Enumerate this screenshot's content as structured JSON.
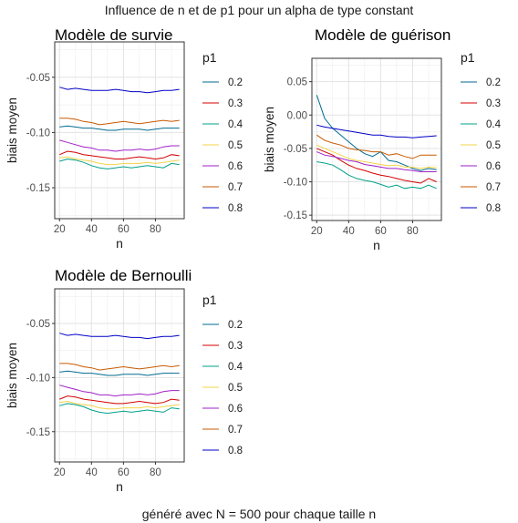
{
  "title": "Influence de n et de p1 pour un alpha de type constant",
  "caption": "généré avec N = 500 pour chaque taille n",
  "chart_data": [
    {
      "type": "line",
      "title": "Modèle de survie",
      "xlabel": "n",
      "ylabel": "biais moyen",
      "xlim": [
        17,
        98
      ],
      "ylim": [
        -0.178,
        -0.018
      ],
      "xticks": [
        20,
        40,
        60,
        80
      ],
      "xtick_labels": [
        "20",
        "40",
        "60",
        "80"
      ],
      "yticks": [
        -0.15,
        -0.1,
        -0.05
      ],
      "ytick_labels": [
        "-0.15",
        "-0.10",
        "-0.05"
      ],
      "grid": true,
      "legend_title": "p1",
      "legend_position": "right",
      "x": [
        20,
        25,
        30,
        35,
        40,
        45,
        50,
        55,
        60,
        65,
        70,
        75,
        80,
        85,
        90,
        95
      ],
      "series": [
        {
          "name": "0.2",
          "color": "#006b8f",
          "values": [
            -0.095,
            -0.094,
            -0.095,
            -0.096,
            -0.096,
            -0.097,
            -0.098,
            -0.098,
            -0.097,
            -0.097,
            -0.097,
            -0.098,
            -0.097,
            -0.096,
            -0.096,
            -0.096
          ]
        },
        {
          "name": "0.3",
          "color": "#d40000",
          "values": [
            -0.12,
            -0.117,
            -0.118,
            -0.12,
            -0.121,
            -0.122,
            -0.123,
            -0.124,
            -0.124,
            -0.123,
            -0.122,
            -0.123,
            -0.124,
            -0.123,
            -0.12,
            -0.121
          ]
        },
        {
          "name": "0.4",
          "color": "#00a08a",
          "values": [
            -0.126,
            -0.124,
            -0.125,
            -0.127,
            -0.13,
            -0.132,
            -0.133,
            -0.132,
            -0.131,
            -0.132,
            -0.131,
            -0.13,
            -0.131,
            -0.132,
            -0.128,
            -0.129
          ]
        },
        {
          "name": "0.5",
          "color": "#f2d44a",
          "values": [
            -0.123,
            -0.122,
            -0.124,
            -0.125,
            -0.126,
            -0.128,
            -0.129,
            -0.129,
            -0.128,
            -0.128,
            -0.128,
            -0.127,
            -0.128,
            -0.127,
            -0.126,
            -0.125
          ]
        },
        {
          "name": "0.6",
          "color": "#a020c8",
          "values": [
            -0.107,
            -0.109,
            -0.111,
            -0.113,
            -0.114,
            -0.116,
            -0.116,
            -0.117,
            -0.116,
            -0.116,
            -0.115,
            -0.116,
            -0.115,
            -0.113,
            -0.112,
            -0.112
          ]
        },
        {
          "name": "0.7",
          "color": "#c85a00",
          "values": [
            -0.087,
            -0.087,
            -0.088,
            -0.09,
            -0.091,
            -0.093,
            -0.092,
            -0.091,
            -0.09,
            -0.091,
            -0.092,
            -0.091,
            -0.09,
            -0.089,
            -0.09,
            -0.089
          ]
        },
        {
          "name": "0.8",
          "color": "#0000c8",
          "values": [
            -0.059,
            -0.061,
            -0.06,
            -0.061,
            -0.062,
            -0.062,
            -0.062,
            -0.061,
            -0.062,
            -0.063,
            -0.063,
            -0.064,
            -0.063,
            -0.062,
            -0.062,
            -0.061
          ]
        }
      ]
    },
    {
      "type": "line",
      "title": "Modèle de guérison",
      "xlabel": "n",
      "ylabel": "biais moyen",
      "xlim": [
        17,
        98
      ],
      "ylim": [
        -0.158,
        0.085
      ],
      "xticks": [
        20,
        40,
        60,
        80
      ],
      "xtick_labels": [
        "20",
        "40",
        "60",
        "80"
      ],
      "yticks": [
        -0.15,
        -0.1,
        -0.05,
        0.0,
        0.05
      ],
      "ytick_labels": [
        "-0.15",
        "-0.10",
        "-0.05",
        "0.00",
        "0.05"
      ],
      "grid": true,
      "legend_title": "p1",
      "legend_position": "right",
      "x": [
        20,
        25,
        30,
        35,
        40,
        45,
        50,
        55,
        60,
        65,
        70,
        75,
        80,
        85,
        90,
        95
      ],
      "series": [
        {
          "name": "0.2",
          "color": "#006b8f",
          "values": [
            0.03,
            -0.005,
            -0.02,
            -0.03,
            -0.04,
            -0.05,
            -0.058,
            -0.062,
            -0.055,
            -0.068,
            -0.07,
            -0.075,
            -0.08,
            -0.083,
            -0.08,
            -0.082
          ]
        },
        {
          "name": "0.3",
          "color": "#d40000",
          "values": [
            -0.05,
            -0.055,
            -0.06,
            -0.068,
            -0.075,
            -0.08,
            -0.083,
            -0.087,
            -0.09,
            -0.092,
            -0.095,
            -0.098,
            -0.1,
            -0.102,
            -0.095,
            -0.1
          ]
        },
        {
          "name": "0.4",
          "color": "#00a08a",
          "values": [
            -0.07,
            -0.072,
            -0.075,
            -0.082,
            -0.09,
            -0.095,
            -0.098,
            -0.1,
            -0.104,
            -0.108,
            -0.105,
            -0.11,
            -0.108,
            -0.11,
            -0.105,
            -0.11
          ]
        },
        {
          "name": "0.5",
          "color": "#f2d44a",
          "values": [
            -0.045,
            -0.05,
            -0.055,
            -0.06,
            -0.065,
            -0.068,
            -0.07,
            -0.072,
            -0.074,
            -0.076,
            -0.075,
            -0.078,
            -0.078,
            -0.08,
            -0.078,
            -0.079
          ]
        },
        {
          "name": "0.6",
          "color": "#a020c8",
          "values": [
            -0.055,
            -0.06,
            -0.062,
            -0.065,
            -0.068,
            -0.07,
            -0.074,
            -0.076,
            -0.078,
            -0.08,
            -0.08,
            -0.082,
            -0.083,
            -0.085,
            -0.085,
            -0.085
          ]
        },
        {
          "name": "0.7",
          "color": "#c85a00",
          "values": [
            -0.03,
            -0.038,
            -0.042,
            -0.045,
            -0.05,
            -0.052,
            -0.053,
            -0.055,
            -0.055,
            -0.06,
            -0.058,
            -0.062,
            -0.065,
            -0.06,
            -0.06,
            -0.06
          ]
        },
        {
          "name": "0.8",
          "color": "#0000c8",
          "values": [
            -0.015,
            -0.018,
            -0.02,
            -0.022,
            -0.024,
            -0.026,
            -0.028,
            -0.03,
            -0.03,
            -0.032,
            -0.033,
            -0.033,
            -0.034,
            -0.033,
            -0.032,
            -0.031
          ]
        }
      ]
    },
    {
      "type": "line",
      "title": "Modèle de Bernoulli",
      "xlabel": "n",
      "ylabel": "biais moyen",
      "xlim": [
        17,
        98
      ],
      "ylim": [
        -0.178,
        -0.018
      ],
      "xticks": [
        20,
        40,
        60,
        80
      ],
      "xtick_labels": [
        "20",
        "40",
        "60",
        "80"
      ],
      "yticks": [
        -0.15,
        -0.1,
        -0.05
      ],
      "ytick_labels": [
        "-0.15",
        "-0.10",
        "-0.05"
      ],
      "grid": true,
      "legend_title": "p1",
      "legend_position": "right",
      "x": [
        20,
        25,
        30,
        35,
        40,
        45,
        50,
        55,
        60,
        65,
        70,
        75,
        80,
        85,
        90,
        95
      ],
      "series": [
        {
          "name": "0.2",
          "color": "#006b8f",
          "values": [
            -0.095,
            -0.094,
            -0.095,
            -0.096,
            -0.096,
            -0.097,
            -0.098,
            -0.098,
            -0.097,
            -0.097,
            -0.097,
            -0.098,
            -0.097,
            -0.096,
            -0.096,
            -0.096
          ]
        },
        {
          "name": "0.3",
          "color": "#d40000",
          "values": [
            -0.12,
            -0.117,
            -0.118,
            -0.12,
            -0.121,
            -0.122,
            -0.123,
            -0.124,
            -0.124,
            -0.123,
            -0.122,
            -0.123,
            -0.124,
            -0.123,
            -0.12,
            -0.121
          ]
        },
        {
          "name": "0.4",
          "color": "#00a08a",
          "values": [
            -0.126,
            -0.124,
            -0.125,
            -0.127,
            -0.13,
            -0.132,
            -0.133,
            -0.132,
            -0.131,
            -0.132,
            -0.131,
            -0.13,
            -0.131,
            -0.132,
            -0.128,
            -0.129
          ]
        },
        {
          "name": "0.5",
          "color": "#f2d44a",
          "values": [
            -0.123,
            -0.122,
            -0.124,
            -0.125,
            -0.126,
            -0.128,
            -0.129,
            -0.129,
            -0.128,
            -0.128,
            -0.128,
            -0.127,
            -0.128,
            -0.127,
            -0.126,
            -0.125
          ]
        },
        {
          "name": "0.6",
          "color": "#a020c8",
          "values": [
            -0.107,
            -0.109,
            -0.111,
            -0.113,
            -0.114,
            -0.116,
            -0.116,
            -0.117,
            -0.116,
            -0.116,
            -0.115,
            -0.116,
            -0.115,
            -0.113,
            -0.112,
            -0.112
          ]
        },
        {
          "name": "0.7",
          "color": "#c85a00",
          "values": [
            -0.087,
            -0.087,
            -0.088,
            -0.09,
            -0.091,
            -0.093,
            -0.092,
            -0.091,
            -0.09,
            -0.091,
            -0.092,
            -0.091,
            -0.09,
            -0.089,
            -0.09,
            -0.089
          ]
        },
        {
          "name": "0.8",
          "color": "#0000c8",
          "values": [
            -0.059,
            -0.061,
            -0.06,
            -0.061,
            -0.062,
            -0.062,
            -0.062,
            -0.061,
            -0.062,
            -0.063,
            -0.063,
            -0.064,
            -0.063,
            -0.062,
            -0.062,
            -0.061
          ]
        }
      ]
    }
  ]
}
